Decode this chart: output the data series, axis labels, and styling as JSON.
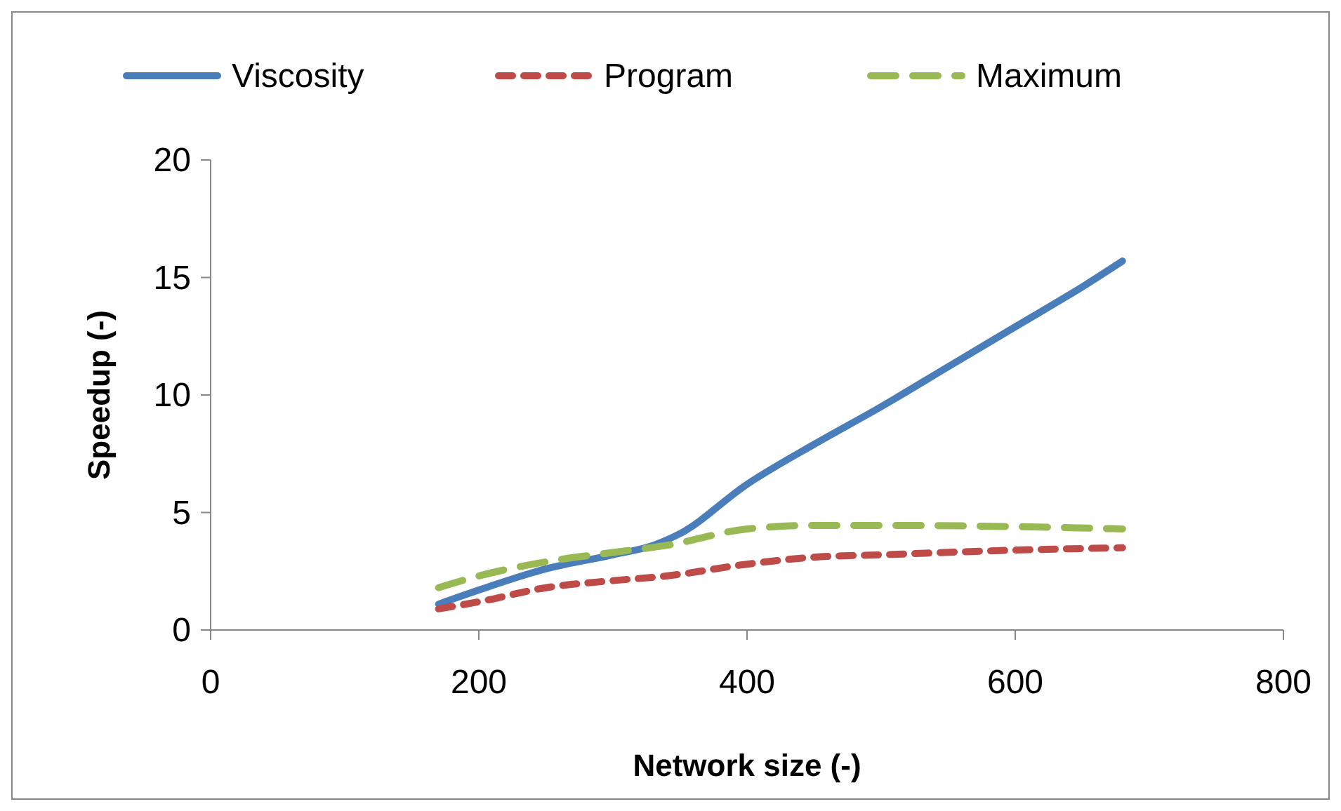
{
  "chart_data": {
    "type": "line",
    "xlabel": "Network size (-)",
    "ylabel": "Speedup (-)",
    "xlim": [
      0,
      800
    ],
    "xticks": [
      0,
      200,
      400,
      600,
      800
    ],
    "ylim": [
      0,
      20
    ],
    "yticks": [
      0,
      5,
      10,
      15,
      20
    ],
    "grid": false,
    "legend": "top",
    "marker": "none",
    "series": [
      {
        "name": "Viscosity",
        "color": "#4a7ebb",
        "line_style": "solid",
        "x": [
          170,
          200,
          250,
          300,
          330,
          350,
          400,
          450,
          500,
          550,
          600,
          650,
          680
        ],
        "values": [
          1.1,
          1.7,
          2.6,
          3.2,
          3.6,
          4.1,
          6.2,
          7.9,
          9.5,
          11.2,
          12.9,
          14.6,
          15.7
        ]
      },
      {
        "name": "Program",
        "color": "#be4b48",
        "line_style": "dotted",
        "x": [
          170,
          200,
          250,
          300,
          340,
          400,
          450,
          500,
          600,
          680
        ],
        "values": [
          0.9,
          1.2,
          1.8,
          2.1,
          2.3,
          2.8,
          3.1,
          3.2,
          3.4,
          3.5
        ]
      },
      {
        "name": "Maximum",
        "color": "#98b954",
        "line_style": "dashed",
        "x": [
          170,
          200,
          250,
          300,
          340,
          400,
          450,
          500,
          600,
          680
        ],
        "values": [
          1.8,
          2.3,
          2.9,
          3.3,
          3.6,
          4.3,
          4.45,
          4.45,
          4.4,
          4.3
        ]
      }
    ]
  }
}
